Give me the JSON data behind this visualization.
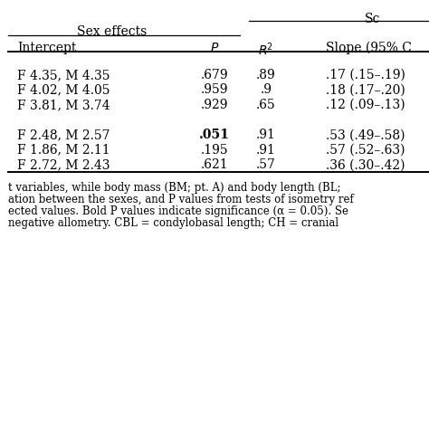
{
  "bg_color": "#ffffff",
  "font_family": "DejaVu Serif",
  "header_fs": 10,
  "body_fs": 10,
  "footer_fs": 8.5,
  "sc_label": "Sc",
  "sex_effects_label": "Sex effects",
  "col_headers": [
    "Intercept",
    "P",
    "R2",
    "Slope (95% C"
  ],
  "group1": [
    [
      "F 4.35, M 4.35",
      ".679",
      ".89",
      ".17 (.15–.19)"
    ],
    [
      "F 4.02, M 4.05",
      ".959",
      ".9",
      ".18 (.17–.20)"
    ],
    [
      "F 3.81, M 3.74",
      ".929",
      ".65",
      ".12 (.09–.13)"
    ]
  ],
  "group2": [
    [
      "F 2.48, M 2.57",
      ".051",
      ".91",
      ".53 (.49–.58)"
    ],
    [
      "F 1.86, M 2.11",
      ".195",
      ".91",
      ".57 (.52–.63)"
    ],
    [
      "F 2.72, M 2.43",
      ".621",
      ".57",
      ".36 (.30–.42)"
    ]
  ],
  "footer_lines": [
    "t variables, while body mass (BM; pt. A) and body length (BL;",
    "ation between the sexes, and ααα values from tests of isometry ref",
    "ected values. Bold ααα values indicate significance (α = 0.05). Se",
    "negative allometry. CBL = condylobasal length; CH = cranial"
  ],
  "footer_lines_display": [
    "t variables, while body mass (BM; pt. A) and body length (BL;",
    "ation between the sexes, and P values from tests of isometry ref",
    "ected values. Bold P values indicate significance (α = 0.05). Se",
    "negative allometry. CBL = condylobasal length; CH = cranial"
  ]
}
